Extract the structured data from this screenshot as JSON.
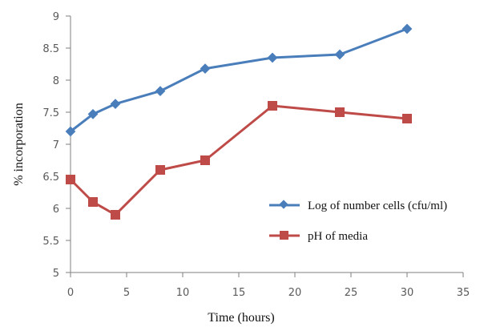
{
  "chart_data": {
    "type": "line",
    "xlabel": "Time (hours)",
    "ylabel": "% incorporation",
    "xlim": [
      0,
      35
    ],
    "ylim": [
      5,
      9
    ],
    "x_ticks": [
      0,
      5,
      10,
      15,
      20,
      25,
      30,
      35
    ],
    "y_ticks": [
      5,
      5.5,
      6,
      6.5,
      7,
      7.5,
      8,
      8.5,
      9
    ],
    "grid": false,
    "legend_position": "right",
    "series": [
      {
        "name": "Log of number cells (cfu/ml)",
        "color": "#4a7ebb",
        "marker": "diamond",
        "x": [
          0,
          2,
          4,
          8,
          12,
          18,
          24,
          30
        ],
        "y": [
          7.2,
          7.47,
          7.63,
          7.83,
          8.18,
          8.35,
          8.4,
          8.8
        ]
      },
      {
        "name": "pH of media",
        "color": "#be4b48",
        "marker": "square",
        "x": [
          0,
          2,
          4,
          8,
          12,
          18,
          24,
          30
        ],
        "y": [
          6.45,
          6.1,
          5.9,
          6.6,
          6.75,
          7.6,
          7.5,
          7.4
        ]
      }
    ]
  }
}
